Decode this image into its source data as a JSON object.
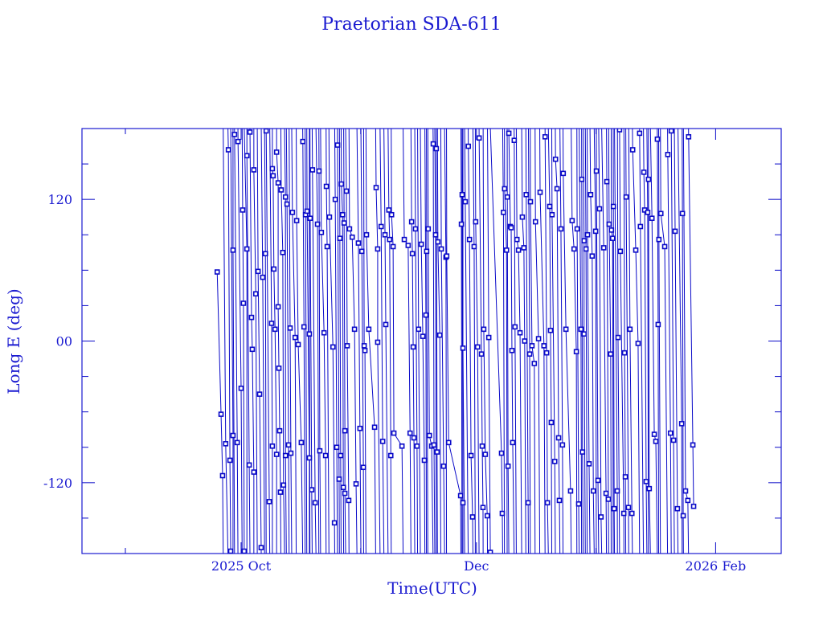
{
  "chart_data": {
    "type": "scatter",
    "title": "Praetorian SDA-611",
    "xlabel": "Time(UTC)",
    "ylabel": "Long E (deg)",
    "x_units": "days since 2025-10-01",
    "xlim": [
      -41.25,
      140
    ],
    "ylim": [
      -180,
      180
    ],
    "x_major_ticks": [
      {
        "value": 0,
        "label": "2025 Oct"
      },
      {
        "value": 61,
        "label": "Dec"
      },
      {
        "value": 123,
        "label": "2026 Feb"
      }
    ],
    "x_minor_ticks": [
      -30,
      31,
      92
    ],
    "y_major_ticks": [
      {
        "value": 120,
        "label": "120"
      },
      {
        "value": 0,
        "label": "00"
      },
      {
        "value": -120,
        "label": "-120"
      }
    ],
    "y_minor_ticks": [
      -150,
      -90,
      -60,
      -30,
      30,
      60,
      90,
      150
    ],
    "color": "#0a0ac8",
    "grid": false,
    "points": [
      [
        -6.2,
        58.5
      ],
      [
        -5.2,
        -62
      ],
      [
        -4.8,
        -114
      ],
      [
        -4,
        -87
      ],
      [
        -3.3,
        162
      ],
      [
        -2.9,
        -101
      ],
      [
        -2.7,
        -178
      ],
      [
        -2.1,
        -80
      ],
      [
        -2.1,
        77
      ],
      [
        -1.7,
        175
      ],
      [
        -1,
        -86
      ],
      [
        -0.8,
        169
      ],
      [
        0,
        -40
      ],
      [
        0.4,
        111
      ],
      [
        0.6,
        32
      ],
      [
        0.8,
        -178
      ],
      [
        1.5,
        78
      ],
      [
        1.5,
        157
      ],
      [
        2.1,
        -105
      ],
      [
        2.3,
        177
      ],
      [
        2.7,
        20
      ],
      [
        2.9,
        -7
      ],
      [
        3.3,
        -111
      ],
      [
        3.3,
        145
      ],
      [
        3.8,
        40
      ],
      [
        4.4,
        59
      ],
      [
        4.8,
        -45
      ],
      [
        5.2,
        -175
      ],
      [
        5.6,
        54
      ],
      [
        6.3,
        74
      ],
      [
        6.5,
        178
      ],
      [
        7.3,
        -136
      ],
      [
        7.9,
        15
      ],
      [
        8.1,
        -89
      ],
      [
        8.1,
        146
      ],
      [
        8.3,
        140
      ],
      [
        8.5,
        61
      ],
      [
        8.8,
        10
      ],
      [
        9.2,
        -96
      ],
      [
        9.2,
        160
      ],
      [
        9.6,
        134
      ],
      [
        9.6,
        29
      ],
      [
        9.8,
        -23
      ],
      [
        10,
        -76
      ],
      [
        10.2,
        -128
      ],
      [
        10.4,
        128
      ],
      [
        10.8,
        75
      ],
      [
        11,
        -122
      ],
      [
        11.5,
        122
      ],
      [
        11.5,
        -97
      ],
      [
        11.9,
        116
      ],
      [
        12.3,
        -88
      ],
      [
        12.7,
        11
      ],
      [
        12.9,
        -95
      ],
      [
        13.3,
        109
      ],
      [
        14,
        3
      ],
      [
        14.4,
        102
      ],
      [
        14.8,
        -3
      ],
      [
        15.6,
        -86
      ],
      [
        16,
        169
      ],
      [
        16.3,
        12
      ],
      [
        16.7,
        107
      ],
      [
        17.1,
        110
      ],
      [
        17.7,
        -99
      ],
      [
        17.7,
        6
      ],
      [
        17.9,
        104
      ],
      [
        18.3,
        -126
      ],
      [
        18.5,
        145
      ],
      [
        19.2,
        -137
      ],
      [
        19.8,
        99
      ],
      [
        20.2,
        144
      ],
      [
        20.4,
        -93
      ],
      [
        20.8,
        92
      ],
      [
        21.5,
        7
      ],
      [
        21.9,
        -97
      ],
      [
        22.1,
        131
      ],
      [
        22.3,
        80
      ],
      [
        22.9,
        105
      ],
      [
        23.8,
        -5
      ],
      [
        24.2,
        -154
      ],
      [
        24.4,
        120
      ],
      [
        24.8,
        -90
      ],
      [
        25,
        166
      ],
      [
        25.4,
        -117
      ],
      [
        25.6,
        87
      ],
      [
        25.8,
        -97
      ],
      [
        26,
        133
      ],
      [
        26.3,
        107
      ],
      [
        26.5,
        -124
      ],
      [
        26.7,
        100
      ],
      [
        26.9,
        -76
      ],
      [
        26.9,
        -129
      ],
      [
        27.3,
        127
      ],
      [
        27.5,
        -4
      ],
      [
        27.9,
        -135
      ],
      [
        28.1,
        95
      ],
      [
        28.8,
        88
      ],
      [
        29.4,
        10
      ],
      [
        29.8,
        -121
      ],
      [
        30.4,
        83
      ],
      [
        30.8,
        -74
      ],
      [
        31.3,
        76
      ],
      [
        31.7,
        -107
      ],
      [
        31.9,
        -4
      ],
      [
        32.1,
        -8
      ],
      [
        32.5,
        90
      ],
      [
        33.1,
        10
      ],
      [
        34.6,
        -73
      ],
      [
        35,
        130
      ],
      [
        35.4,
        78
      ],
      [
        35.4,
        -1
      ],
      [
        36.3,
        97
      ],
      [
        36.7,
        -85
      ],
      [
        37.3,
        90
      ],
      [
        37.5,
        14
      ],
      [
        38.3,
        111
      ],
      [
        38.5,
        86
      ],
      [
        38.8,
        -97
      ],
      [
        39,
        107
      ],
      [
        39.4,
        80
      ],
      [
        39.6,
        -78
      ],
      [
        41.7,
        -89
      ],
      [
        42.3,
        86
      ],
      [
        43.3,
        81
      ],
      [
        43.8,
        -78
      ],
      [
        44.2,
        101
      ],
      [
        44.4,
        74
      ],
      [
        44.6,
        -5
      ],
      [
        44.8,
        -82
      ],
      [
        45.2,
        95
      ],
      [
        45.6,
        -89
      ],
      [
        46,
        10
      ],
      [
        46.7,
        82
      ],
      [
        47.1,
        4
      ],
      [
        47.5,
        -101
      ],
      [
        47.9,
        22
      ],
      [
        48.1,
        76
      ],
      [
        48.5,
        95
      ],
      [
        48.8,
        -80
      ],
      [
        49.4,
        -89
      ],
      [
        49.8,
        167
      ],
      [
        50,
        -88
      ],
      [
        50.4,
        90
      ],
      [
        50.6,
        163
      ],
      [
        50.8,
        -94
      ],
      [
        51,
        84
      ],
      [
        51.5,
        5
      ],
      [
        51.9,
        78
      ],
      [
        52.5,
        -106
      ],
      [
        53.1,
        71
      ],
      [
        53.3,
        72
      ],
      [
        53.8,
        -86
      ],
      [
        56.9,
        -131
      ],
      [
        57.1,
        99
      ],
      [
        57.3,
        124
      ],
      [
        57.5,
        -137
      ],
      [
        57.5,
        -6
      ],
      [
        58.1,
        118
      ],
      [
        58.9,
        165
      ],
      [
        59.2,
        86
      ],
      [
        59.6,
        -97
      ],
      [
        60,
        -149
      ],
      [
        60.4,
        80
      ],
      [
        60.8,
        101
      ],
      [
        61.3,
        -5
      ],
      [
        61.7,
        172
      ],
      [
        62.3,
        -11
      ],
      [
        62.5,
        -89
      ],
      [
        62.7,
        -141
      ],
      [
        62.9,
        10
      ],
      [
        63.3,
        -96
      ],
      [
        63.8,
        -148
      ],
      [
        64.2,
        3
      ],
      [
        64.6,
        -179
      ],
      [
        67.5,
        -95
      ],
      [
        67.7,
        -146
      ],
      [
        68,
        109
      ],
      [
        68.3,
        129
      ],
      [
        68.8,
        77
      ],
      [
        69,
        122
      ],
      [
        69.2,
        -106
      ],
      [
        69.4,
        176
      ],
      [
        69.8,
        97
      ],
      [
        70,
        96
      ],
      [
        70.2,
        -8
      ],
      [
        70.4,
        -86
      ],
      [
        70.8,
        170
      ],
      [
        71,
        12
      ],
      [
        71.5,
        86
      ],
      [
        71.9,
        77
      ],
      [
        72.3,
        7
      ],
      [
        72.9,
        105
      ],
      [
        73.3,
        79
      ],
      [
        73.5,
        0
      ],
      [
        73.9,
        124
      ],
      [
        74.4,
        -137
      ],
      [
        74.8,
        -11
      ],
      [
        75,
        118
      ],
      [
        75.4,
        -4
      ],
      [
        76,
        -19
      ],
      [
        76.3,
        101
      ],
      [
        77.1,
        2
      ],
      [
        77.5,
        126
      ],
      [
        78.5,
        -4
      ],
      [
        78.8,
        173
      ],
      [
        79.2,
        -10
      ],
      [
        79.4,
        -137
      ],
      [
        80,
        114
      ],
      [
        80.2,
        9
      ],
      [
        80.4,
        -69
      ],
      [
        80.6,
        107
      ],
      [
        81.3,
        -102
      ],
      [
        81.5,
        154
      ],
      [
        81.9,
        129
      ],
      [
        82.3,
        -82
      ],
      [
        82.5,
        -135
      ],
      [
        82.9,
        95
      ],
      [
        83.3,
        -88
      ],
      [
        83.5,
        142
      ],
      [
        84.2,
        10
      ],
      [
        85.4,
        -127
      ],
      [
        85.8,
        102
      ],
      [
        86.3,
        78
      ],
      [
        86.9,
        -9
      ],
      [
        87.1,
        95
      ],
      [
        87.5,
        -138
      ],
      [
        88.1,
        10
      ],
      [
        88.3,
        137
      ],
      [
        88.5,
        -94
      ],
      [
        88.9,
        85
      ],
      [
        88.9,
        6
      ],
      [
        89.4,
        78
      ],
      [
        89.8,
        90
      ],
      [
        90.2,
        -104
      ],
      [
        90.6,
        124
      ],
      [
        91,
        72
      ],
      [
        91.3,
        -127
      ],
      [
        91.9,
        93
      ],
      [
        92.1,
        144
      ],
      [
        92.5,
        -118
      ],
      [
        92.9,
        112
      ],
      [
        93.3,
        -149
      ],
      [
        94,
        79
      ],
      [
        94.6,
        -129
      ],
      [
        94.8,
        135
      ],
      [
        95.2,
        -134
      ],
      [
        95.4,
        99
      ],
      [
        95.8,
        -11
      ],
      [
        96,
        94
      ],
      [
        96.3,
        87
      ],
      [
        96.5,
        114
      ],
      [
        96.7,
        -142
      ],
      [
        97.5,
        -127
      ],
      [
        97.7,
        3
      ],
      [
        98.1,
        179
      ],
      [
        98.3,
        76
      ],
      [
        99.2,
        -146
      ],
      [
        99.4,
        -10
      ],
      [
        99.6,
        -115
      ],
      [
        99.8,
        122
      ],
      [
        100.4,
        -141
      ],
      [
        100.8,
        10
      ],
      [
        101.3,
        -146
      ],
      [
        101.5,
        162
      ],
      [
        102.3,
        77
      ],
      [
        102.9,
        -2
      ],
      [
        103.3,
        176
      ],
      [
        103.5,
        97
      ],
      [
        104.4,
        143
      ],
      [
        104.6,
        111
      ],
      [
        105,
        -119
      ],
      [
        105.4,
        109
      ],
      [
        105.6,
        137
      ],
      [
        105.8,
        -125
      ],
      [
        106.5,
        104
      ],
      [
        107.1,
        -79
      ],
      [
        107.5,
        -85
      ],
      [
        107.9,
        171
      ],
      [
        108.1,
        14
      ],
      [
        108.3,
        86
      ],
      [
        108.8,
        108
      ],
      [
        109.8,
        80
      ],
      [
        110.6,
        158
      ],
      [
        111.3,
        -78
      ],
      [
        111.5,
        178
      ],
      [
        112.1,
        -84
      ],
      [
        112.5,
        93
      ],
      [
        113.1,
        -142
      ],
      [
        114.2,
        -70
      ],
      [
        114.4,
        108
      ],
      [
        114.6,
        -148
      ],
      [
        115.2,
        -127
      ],
      [
        115.8,
        -135
      ],
      [
        116,
        173
      ],
      [
        117.1,
        -88
      ],
      [
        117.3,
        -140
      ]
    ]
  }
}
